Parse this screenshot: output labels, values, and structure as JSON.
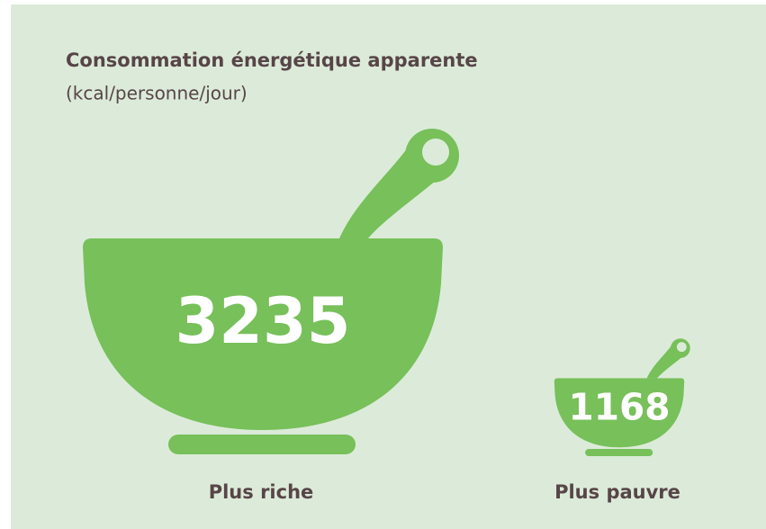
{
  "chart_data": {
    "type": "pictogram",
    "title": "Consommation énergétique apparente",
    "subtitle": "(kcal/personne/jour)",
    "categories": [
      "Plus riche",
      "Plus pauvre"
    ],
    "values": [
      3235,
      1168
    ],
    "color": "#77c05a"
  }
}
